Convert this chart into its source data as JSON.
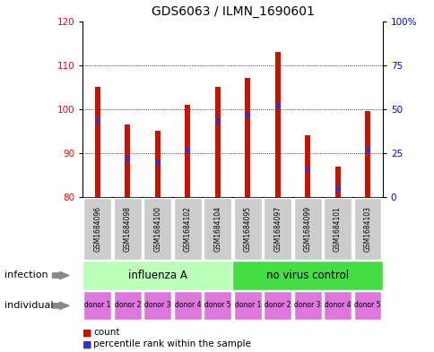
{
  "title": "GDS6063 / ILMN_1690601",
  "samples": [
    "GSM1684096",
    "GSM1684098",
    "GSM1684100",
    "GSM1684102",
    "GSM1684104",
    "GSM1684095",
    "GSM1684097",
    "GSM1684099",
    "GSM1684101",
    "GSM1684103"
  ],
  "counts": [
    105,
    96.5,
    95,
    101,
    105,
    107,
    113,
    94,
    87,
    99.5
  ],
  "percentile_ranks": [
    44,
    22,
    20,
    27,
    44,
    47,
    52,
    16,
    5,
    27
  ],
  "y_min": 80,
  "y_max": 120,
  "y_ticks": [
    80,
    90,
    100,
    110,
    120
  ],
  "right_y_ticks": [
    0,
    25,
    50,
    75,
    100
  ],
  "right_y_labels": [
    "0",
    "25",
    "50",
    "75",
    "100%"
  ],
  "bar_color": "#cc1100",
  "blue_color": "#3333cc",
  "infection_labels": [
    "influenza A",
    "no virus control"
  ],
  "infection_color_light": "#bbffbb",
  "infection_color_dark": "#44dd44",
  "individual_labels": [
    "donor 1",
    "donor 2",
    "donor 3",
    "donor 4",
    "donor 5",
    "donor 1",
    "donor 2",
    "donor 3",
    "donor 4",
    "donor 5"
  ],
  "individual_color": "#dd77dd",
  "sample_bg_color": "#cccccc",
  "title_fontsize": 10,
  "tick_fontsize": 7.5,
  "bar_width": 0.18
}
